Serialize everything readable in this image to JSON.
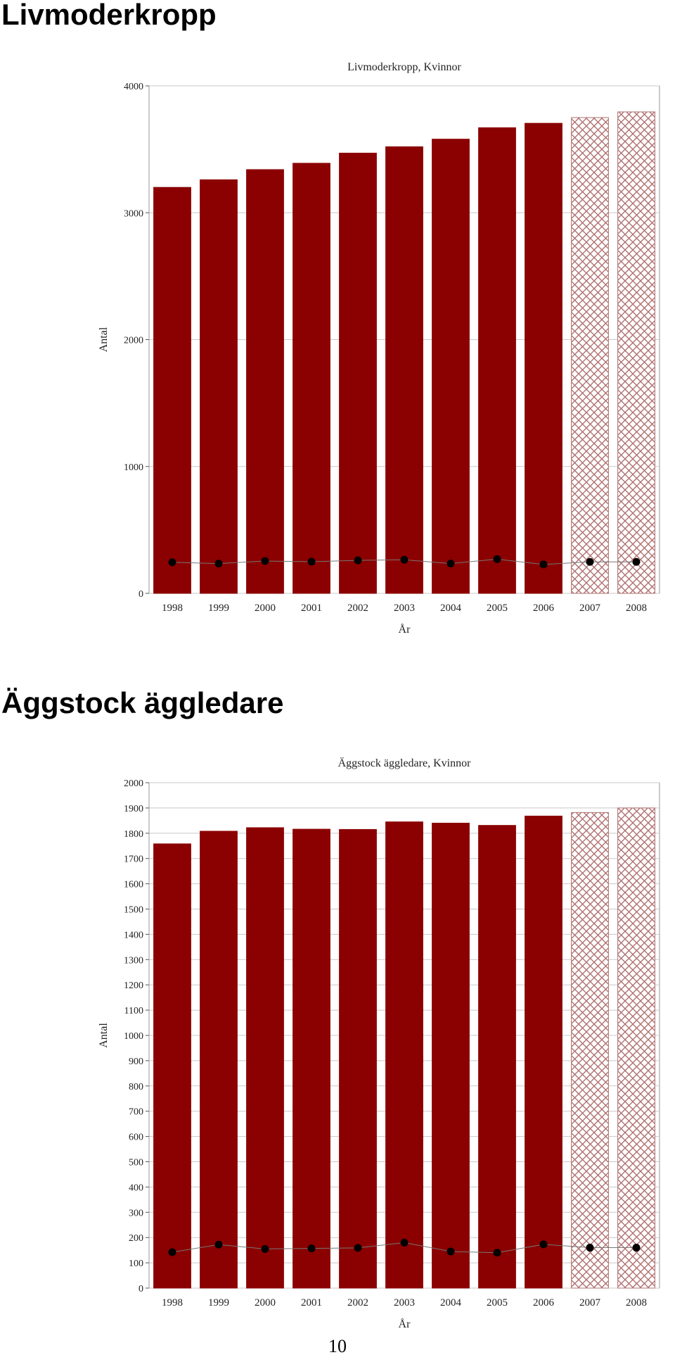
{
  "page": {
    "heading_1": "Livmoderkropp",
    "heading_2": "Äggstock äggledare",
    "page_number": "10"
  },
  "colors": {
    "bar_fill": "#8b0000",
    "bar_outline": "#8b0000",
    "projected_hatch": "#b07070",
    "dot": "#000000",
    "grid": "#c8c8c8"
  },
  "chart_data": [
    {
      "type": "bar",
      "title": "Livmoderkropp, Kvinnor",
      "xlabel": "År",
      "ylabel": "Antal",
      "ylim": [
        0,
        4000
      ],
      "yticks": [
        0,
        1000,
        2000,
        3000,
        4000
      ],
      "categories": [
        "1998",
        "1999",
        "2000",
        "2001",
        "2002",
        "2003",
        "2004",
        "2005",
        "2006",
        "2007",
        "2008"
      ],
      "projected_categories": [
        "2007",
        "2008"
      ],
      "grid": true,
      "series": [
        {
          "type": "bar",
          "values": [
            3200,
            3260,
            3340,
            3390,
            3470,
            3520,
            3580,
            3670,
            3705,
            3750,
            3795
          ]
        },
        {
          "type": "line-dots",
          "values": [
            245,
            235,
            255,
            250,
            260,
            265,
            235,
            270,
            228,
            248,
            248
          ]
        }
      ]
    },
    {
      "type": "bar",
      "title": "Äggstock äggledare, Kvinnor",
      "xlabel": "År",
      "ylabel": "Antal",
      "ylim": [
        0,
        2000
      ],
      "yticks": [
        0,
        100,
        200,
        300,
        400,
        500,
        600,
        700,
        800,
        900,
        1000,
        1100,
        1200,
        1300,
        1400,
        1500,
        1600,
        1700,
        1800,
        1900,
        2000
      ],
      "categories": [
        "1998",
        "1999",
        "2000",
        "2001",
        "2002",
        "2003",
        "2004",
        "2005",
        "2006",
        "2007",
        "2008"
      ],
      "projected_categories": [
        "2007",
        "2008"
      ],
      "grid": true,
      "series": [
        {
          "type": "bar",
          "values": [
            1758,
            1808,
            1822,
            1816,
            1815,
            1845,
            1840,
            1831,
            1868,
            1882,
            1900
          ]
        },
        {
          "type": "line-dots",
          "values": [
            142,
            172,
            155,
            157,
            159,
            180,
            145,
            140,
            173,
            160,
            160
          ]
        }
      ]
    }
  ]
}
